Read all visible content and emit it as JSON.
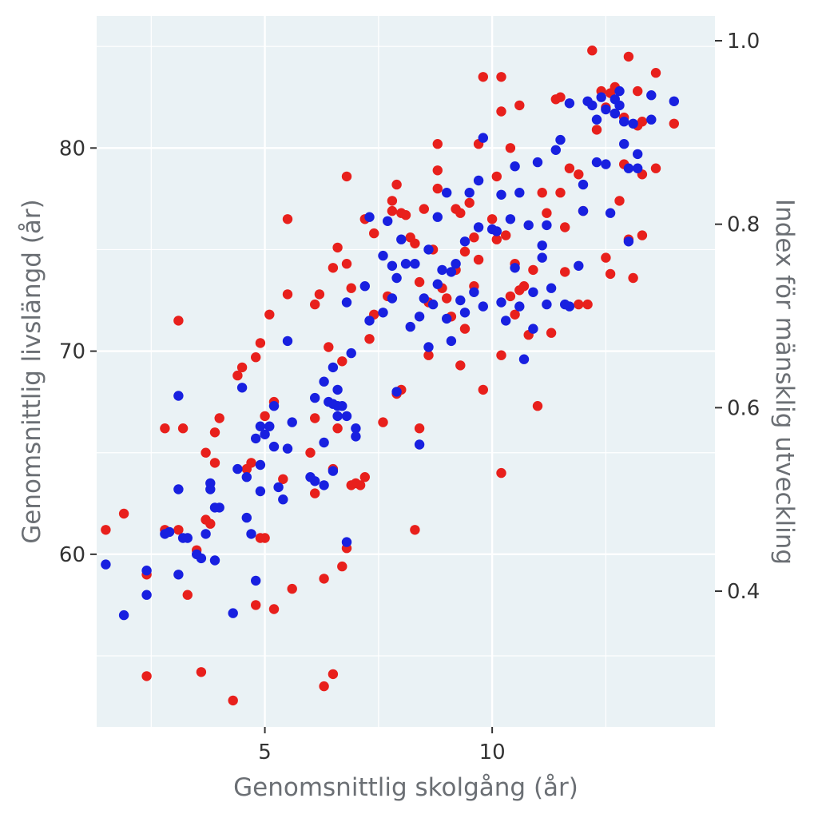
{
  "chart_data": {
    "type": "scatter",
    "title": "",
    "xlabel": "Genomsnittlig skolgång (år)",
    "ylabel": "Genomsnittlig livslängd (år)",
    "y2label": "Index för mänsklig utveckling",
    "xlim": [
      1.3,
      14.9
    ],
    "ylim": [
      51.5,
      86.5
    ],
    "y2lim": [
      0.252,
      1.027
    ],
    "x_ticks": [
      {
        "value": 5,
        "label": "5"
      },
      {
        "value": 10,
        "label": "10"
      }
    ],
    "y_ticks": [
      {
        "value": 60,
        "label": "60"
      },
      {
        "value": 70,
        "label": "70"
      },
      {
        "value": 80,
        "label": "80"
      }
    ],
    "y2_ticks": [
      {
        "value": 0.4,
        "label": "0.4"
      },
      {
        "value": 0.6,
        "label": "0.6"
      },
      {
        "value": 0.8,
        "label": "0.8"
      },
      {
        "value": 1.0,
        "label": "1.0"
      }
    ],
    "grid": true,
    "legend": "none",
    "background_color": "#eaf2f5",
    "grid_color": "#ffffff",
    "series": [
      {
        "color": "#e8201c",
        "axis": "left",
        "points": [
          [
            1.5,
            61.2
          ],
          [
            1.9,
            62.0
          ],
          [
            2.4,
            59.0
          ],
          [
            2.4,
            54.0
          ],
          [
            2.8,
            61.2
          ],
          [
            2.8,
            66.2
          ],
          [
            3.1,
            71.5
          ],
          [
            3.1,
            61.2
          ],
          [
            3.2,
            66.2
          ],
          [
            3.3,
            58.0
          ],
          [
            3.5,
            60.2
          ],
          [
            3.6,
            54.2
          ],
          [
            3.7,
            65.0
          ],
          [
            3.7,
            61.7
          ],
          [
            3.8,
            61.5
          ],
          [
            3.9,
            66.0
          ],
          [
            3.9,
            64.5
          ],
          [
            4.0,
            66.7
          ],
          [
            4.3,
            52.8
          ],
          [
            4.4,
            68.8
          ],
          [
            4.5,
            69.2
          ],
          [
            4.6,
            64.2
          ],
          [
            4.7,
            64.5
          ],
          [
            4.8,
            69.7
          ],
          [
            4.8,
            57.5
          ],
          [
            4.9,
            70.4
          ],
          [
            4.9,
            60.8
          ],
          [
            5.0,
            60.8
          ],
          [
            5.0,
            66.8
          ],
          [
            5.1,
            71.8
          ],
          [
            5.2,
            67.5
          ],
          [
            5.2,
            57.3
          ],
          [
            5.4,
            63.7
          ],
          [
            5.5,
            72.8
          ],
          [
            5.5,
            76.5
          ],
          [
            5.6,
            58.3
          ],
          [
            6.0,
            65.0
          ],
          [
            6.1,
            63.0
          ],
          [
            6.1,
            66.7
          ],
          [
            6.1,
            72.3
          ],
          [
            6.2,
            72.8
          ],
          [
            6.3,
            58.8
          ],
          [
            6.3,
            53.5
          ],
          [
            6.4,
            70.2
          ],
          [
            6.5,
            74.1
          ],
          [
            6.5,
            64.2
          ],
          [
            6.5,
            54.1
          ],
          [
            6.6,
            75.1
          ],
          [
            6.6,
            66.2
          ],
          [
            6.7,
            59.4
          ],
          [
            6.7,
            69.5
          ],
          [
            6.8,
            74.3
          ],
          [
            6.8,
            78.6
          ],
          [
            6.8,
            60.3
          ],
          [
            6.9,
            73.1
          ],
          [
            6.9,
            63.4
          ],
          [
            7.0,
            63.5
          ],
          [
            7.1,
            63.4
          ],
          [
            7.2,
            63.8
          ],
          [
            7.2,
            76.5
          ],
          [
            7.3,
            70.6
          ],
          [
            7.4,
            75.8
          ],
          [
            7.4,
            71.8
          ],
          [
            7.6,
            66.5
          ],
          [
            7.7,
            72.7
          ],
          [
            7.8,
            77.4
          ],
          [
            7.8,
            76.9
          ],
          [
            7.9,
            67.9
          ],
          [
            7.9,
            78.2
          ],
          [
            8.0,
            76.8
          ],
          [
            8.0,
            68.1
          ],
          [
            8.1,
            76.7
          ],
          [
            8.2,
            75.6
          ],
          [
            8.3,
            75.3
          ],
          [
            8.3,
            61.2
          ],
          [
            8.4,
            66.2
          ],
          [
            8.4,
            73.4
          ],
          [
            8.5,
            77.0
          ],
          [
            8.6,
            69.8
          ],
          [
            8.6,
            72.4
          ],
          [
            8.7,
            75.0
          ],
          [
            8.8,
            78.0
          ],
          [
            8.8,
            78.9
          ],
          [
            8.8,
            80.2
          ],
          [
            8.9,
            73.1
          ],
          [
            9.0,
            72.6
          ],
          [
            9.1,
            71.7
          ],
          [
            9.2,
            74.0
          ],
          [
            9.2,
            77.0
          ],
          [
            9.3,
            76.8
          ],
          [
            9.3,
            69.3
          ],
          [
            9.4,
            71.1
          ],
          [
            9.4,
            74.9
          ],
          [
            9.5,
            77.3
          ],
          [
            9.6,
            75.6
          ],
          [
            9.6,
            73.2
          ],
          [
            9.7,
            80.2
          ],
          [
            9.7,
            74.5
          ],
          [
            9.8,
            83.5
          ],
          [
            9.8,
            68.1
          ],
          [
            10.0,
            76.5
          ],
          [
            10.1,
            75.5
          ],
          [
            10.1,
            78.6
          ],
          [
            10.2,
            83.5
          ],
          [
            10.2,
            81.8
          ],
          [
            10.2,
            69.8
          ],
          [
            10.2,
            64.0
          ],
          [
            10.3,
            75.7
          ],
          [
            10.4,
            72.7
          ],
          [
            10.4,
            80.0
          ],
          [
            10.5,
            71.8
          ],
          [
            10.5,
            74.3
          ],
          [
            10.6,
            73.0
          ],
          [
            10.6,
            82.1
          ],
          [
            10.7,
            73.2
          ],
          [
            10.8,
            70.8
          ],
          [
            10.9,
            74.0
          ],
          [
            11.0,
            67.3
          ],
          [
            11.1,
            77.8
          ],
          [
            11.2,
            76.8
          ],
          [
            11.3,
            70.9
          ],
          [
            11.4,
            82.4
          ],
          [
            11.5,
            77.8
          ],
          [
            11.5,
            82.5
          ],
          [
            11.6,
            76.1
          ],
          [
            11.6,
            73.9
          ],
          [
            11.7,
            79.0
          ],
          [
            11.9,
            78.7
          ],
          [
            11.9,
            72.3
          ],
          [
            12.0,
            76.9
          ],
          [
            12.1,
            72.3
          ],
          [
            12.2,
            84.8
          ],
          [
            12.3,
            80.9
          ],
          [
            12.4,
            82.8
          ],
          [
            12.5,
            74.6
          ],
          [
            12.5,
            82.0
          ],
          [
            12.6,
            82.7
          ],
          [
            12.6,
            73.8
          ],
          [
            12.7,
            81.7
          ],
          [
            12.7,
            83.0
          ],
          [
            12.8,
            77.4
          ],
          [
            12.9,
            79.2
          ],
          [
            12.9,
            81.5
          ],
          [
            13.0,
            75.5
          ],
          [
            13.0,
            84.5
          ],
          [
            13.1,
            73.6
          ],
          [
            13.2,
            82.8
          ],
          [
            13.2,
            81.1
          ],
          [
            13.3,
            75.7
          ],
          [
            13.3,
            78.7
          ],
          [
            13.6,
            83.7
          ],
          [
            13.6,
            79.0
          ],
          [
            13.3,
            81.3
          ],
          [
            14.0,
            81.2
          ]
        ]
      },
      {
        "color": "#1820e0",
        "axis": "left",
        "points": [
          [
            1.5,
            59.5
          ],
          [
            1.9,
            57.0
          ],
          [
            2.4,
            59.2
          ],
          [
            2.4,
            58.0
          ],
          [
            2.8,
            61.0
          ],
          [
            2.9,
            61.1
          ],
          [
            3.1,
            63.2
          ],
          [
            3.1,
            59.0
          ],
          [
            3.1,
            67.8
          ],
          [
            3.2,
            60.8
          ],
          [
            3.3,
            60.8
          ],
          [
            3.5,
            60.0
          ],
          [
            3.6,
            59.8
          ],
          [
            3.7,
            61.0
          ],
          [
            3.8,
            63.2
          ],
          [
            3.8,
            63.5
          ],
          [
            3.9,
            59.7
          ],
          [
            3.9,
            62.3
          ],
          [
            4.0,
            62.3
          ],
          [
            4.3,
            57.1
          ],
          [
            4.4,
            64.2
          ],
          [
            4.5,
            68.2
          ],
          [
            4.6,
            63.8
          ],
          [
            4.6,
            61.8
          ],
          [
            4.7,
            61.0
          ],
          [
            4.8,
            58.7
          ],
          [
            4.8,
            65.7
          ],
          [
            4.9,
            66.3
          ],
          [
            4.9,
            64.4
          ],
          [
            4.9,
            63.1
          ],
          [
            5.0,
            65.9
          ],
          [
            5.1,
            66.3
          ],
          [
            5.2,
            67.3
          ],
          [
            5.2,
            65.3
          ],
          [
            5.3,
            63.3
          ],
          [
            5.4,
            62.7
          ],
          [
            5.5,
            70.5
          ],
          [
            5.5,
            65.2
          ],
          [
            5.6,
            66.5
          ],
          [
            6.0,
            63.8
          ],
          [
            6.1,
            67.7
          ],
          [
            6.1,
            63.6
          ],
          [
            6.3,
            63.4
          ],
          [
            6.3,
            65.5
          ],
          [
            6.3,
            68.5
          ],
          [
            6.4,
            67.5
          ],
          [
            6.5,
            69.2
          ],
          [
            6.5,
            67.4
          ],
          [
            6.5,
            64.1
          ],
          [
            6.6,
            68.1
          ],
          [
            6.6,
            67.3
          ],
          [
            6.6,
            66.8
          ],
          [
            6.7,
            67.3
          ],
          [
            6.8,
            72.4
          ],
          [
            6.8,
            66.8
          ],
          [
            6.8,
            60.6
          ],
          [
            6.9,
            69.9
          ],
          [
            7.0,
            66.2
          ],
          [
            7.0,
            65.8
          ],
          [
            7.2,
            73.2
          ],
          [
            7.3,
            76.6
          ],
          [
            7.3,
            71.5
          ],
          [
            7.6,
            71.9
          ],
          [
            7.6,
            74.7
          ],
          [
            7.7,
            76.4
          ],
          [
            7.8,
            74.2
          ],
          [
            7.8,
            72.6
          ],
          [
            7.9,
            73.6
          ],
          [
            7.9,
            68.0
          ],
          [
            8.0,
            75.5
          ],
          [
            8.1,
            74.3
          ],
          [
            8.2,
            71.2
          ],
          [
            8.3,
            74.3
          ],
          [
            8.4,
            71.7
          ],
          [
            8.4,
            65.4
          ],
          [
            8.5,
            72.6
          ],
          [
            8.6,
            70.2
          ],
          [
            8.6,
            75.0
          ],
          [
            8.7,
            72.3
          ],
          [
            8.8,
            76.6
          ],
          [
            8.8,
            73.3
          ],
          [
            8.9,
            74.0
          ],
          [
            9.0,
            71.6
          ],
          [
            9.0,
            77.8
          ],
          [
            9.1,
            73.9
          ],
          [
            9.1,
            70.5
          ],
          [
            9.2,
            74.3
          ],
          [
            9.3,
            72.5
          ],
          [
            9.4,
            71.9
          ],
          [
            9.4,
            75.4
          ],
          [
            9.5,
            77.8
          ],
          [
            9.6,
            72.9
          ],
          [
            9.7,
            76.1
          ],
          [
            9.7,
            78.4
          ],
          [
            9.8,
            72.2
          ],
          [
            9.8,
            80.5
          ],
          [
            10.0,
            76.0
          ],
          [
            10.1,
            75.9
          ],
          [
            10.2,
            77.7
          ],
          [
            10.2,
            72.4
          ],
          [
            10.3,
            71.5
          ],
          [
            10.4,
            76.5
          ],
          [
            10.5,
            79.1
          ],
          [
            10.5,
            74.1
          ],
          [
            10.6,
            72.2
          ],
          [
            10.6,
            77.8
          ],
          [
            10.7,
            69.6
          ],
          [
            10.8,
            76.2
          ],
          [
            10.9,
            71.1
          ],
          [
            10.9,
            72.9
          ],
          [
            11.0,
            79.3
          ],
          [
            11.1,
            74.6
          ],
          [
            11.1,
            75.2
          ],
          [
            11.2,
            72.3
          ],
          [
            11.2,
            76.2
          ],
          [
            11.3,
            73.1
          ],
          [
            11.4,
            79.9
          ],
          [
            11.5,
            80.4
          ],
          [
            11.6,
            72.3
          ],
          [
            11.7,
            72.2
          ],
          [
            11.7,
            82.2
          ],
          [
            11.9,
            74.2
          ],
          [
            12.0,
            76.9
          ],
          [
            12.0,
            78.2
          ],
          [
            12.1,
            82.3
          ],
          [
            12.2,
            82.1
          ],
          [
            12.3,
            79.3
          ],
          [
            12.3,
            81.4
          ],
          [
            12.4,
            82.5
          ],
          [
            12.5,
            79.2
          ],
          [
            12.5,
            81.9
          ],
          [
            12.6,
            76.8
          ],
          [
            12.7,
            81.7
          ],
          [
            12.7,
            82.4
          ],
          [
            12.8,
            82.8
          ],
          [
            12.8,
            82.1
          ],
          [
            12.9,
            80.2
          ],
          [
            12.9,
            81.3
          ],
          [
            13.0,
            79.0
          ],
          [
            13.0,
            75.4
          ],
          [
            13.1,
            81.2
          ],
          [
            13.2,
            79.7
          ],
          [
            13.2,
            79.0
          ],
          [
            13.5,
            82.6
          ],
          [
            13.5,
            81.4
          ],
          [
            14.0,
            82.3
          ]
        ]
      }
    ]
  }
}
